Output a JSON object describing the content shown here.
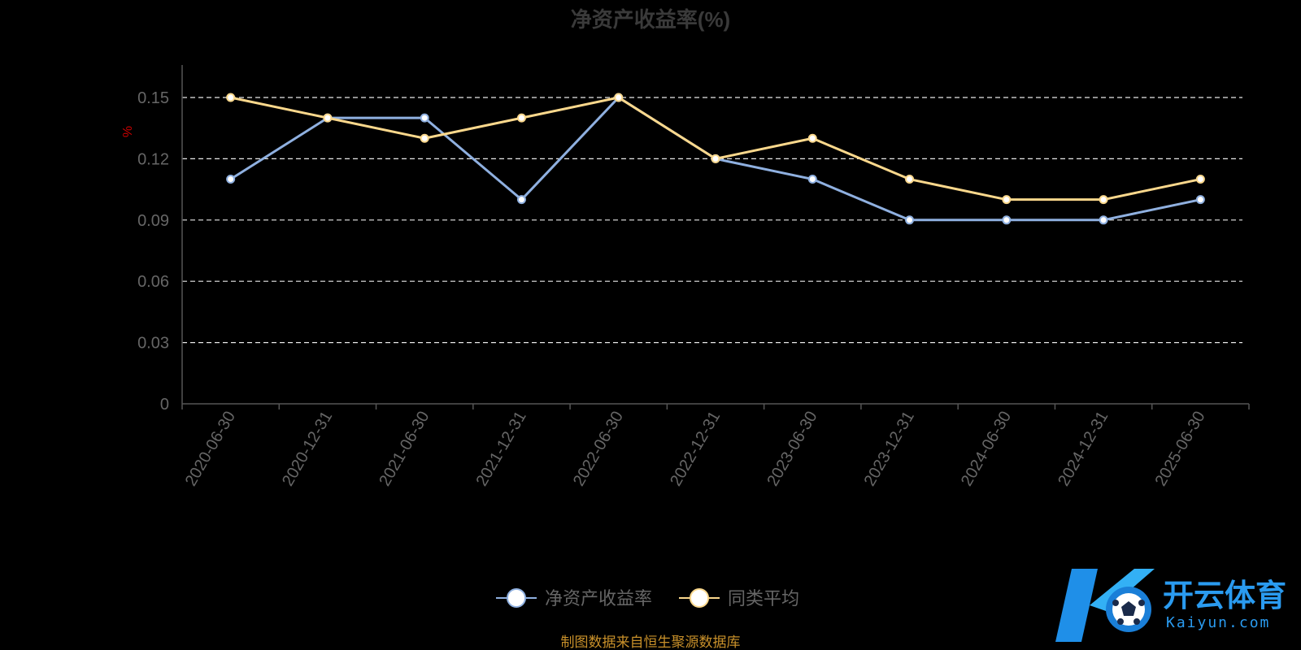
{
  "chart_data": {
    "type": "line",
    "title": "净资产收益率(%)",
    "ylabel": "%",
    "categories": [
      "2020-06-30",
      "2020-12-31",
      "2021-06-30",
      "2021-12-31",
      "2022-06-30",
      "2022-12-31",
      "2023-06-30",
      "2023-12-31",
      "2024-06-30",
      "2024-12-31",
      "2025-06-30"
    ],
    "y_ticks": [
      "0",
      "0.03",
      "0.06",
      "0.09",
      "0.12",
      "0.15"
    ],
    "ylim": [
      0,
      0.15
    ],
    "grid": true,
    "legend_position": "bottom-center",
    "series": [
      {
        "name": "净资产收益率",
        "color": "#8fb0e0",
        "values": [
          0.11,
          0.14,
          0.14,
          0.1,
          0.15,
          0.12,
          0.11,
          0.09,
          0.09,
          0.09,
          0.1
        ]
      },
      {
        "name": "同类平均",
        "color": "#fbd88c",
        "values": [
          0.15,
          0.14,
          0.13,
          0.14,
          0.15,
          0.12,
          0.13,
          0.11,
          0.1,
          0.1,
          0.11
        ]
      }
    ]
  },
  "footer": {
    "source": "制图数据来自恒生聚源数据库"
  },
  "watermark": {
    "brand_cn": "开云体育",
    "brand_en": "Kaiyun.com",
    "logo_icon": "soccer-ball-k-logo-icon"
  }
}
